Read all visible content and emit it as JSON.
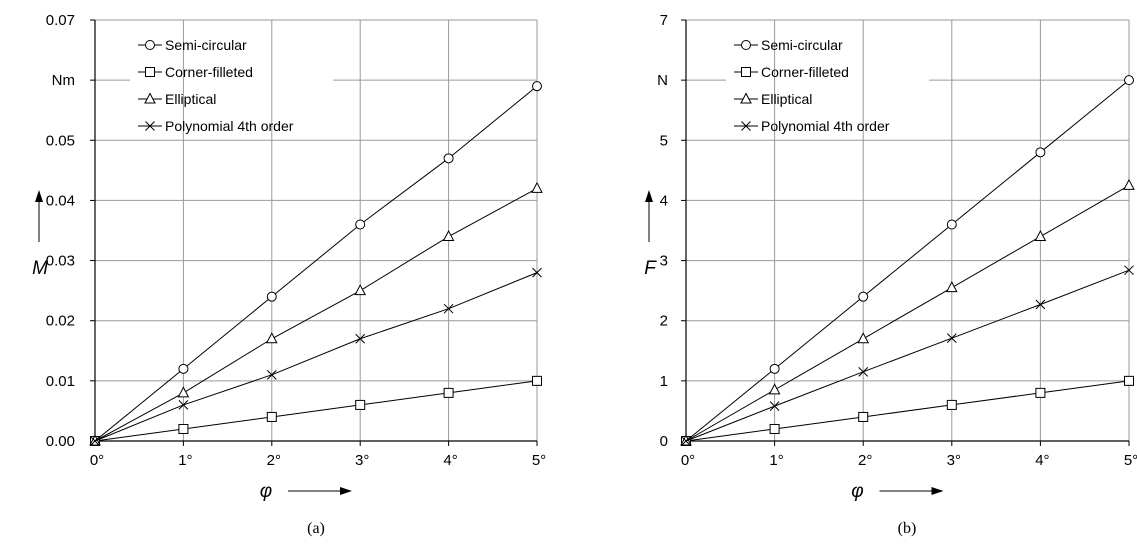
{
  "chart_data": [
    {
      "type": "line",
      "caption": "(a)",
      "ylabel": "M",
      "y_unit": "Nm",
      "xlabel": "φ",
      "x": [
        0,
        1,
        2,
        3,
        4,
        5
      ],
      "x_tick_labels": [
        "0°",
        "1°",
        "2°",
        "3°",
        "4°",
        "5°"
      ],
      "ylim": [
        0,
        0.07
      ],
      "y_ticks": [
        0,
        0.01,
        0.02,
        0.03,
        0.04,
        0.05,
        0.06,
        0.07
      ],
      "y_tick_labels": [
        "0.00",
        "0.01",
        "0.02",
        "0.03",
        "0.04",
        "0.05",
        "Nm",
        "0.07"
      ],
      "grid": true,
      "legend_position": "top-left",
      "series": [
        {
          "name": "Semi-circular",
          "marker": "circle",
          "values": [
            0,
            0.012,
            0.024,
            0.036,
            0.047,
            0.059
          ]
        },
        {
          "name": "Corner-filleted",
          "marker": "square",
          "values": [
            0,
            0.002,
            0.004,
            0.006,
            0.008,
            0.01
          ]
        },
        {
          "name": "Elliptical",
          "marker": "triangle",
          "values": [
            0,
            0.008,
            0.017,
            0.025,
            0.034,
            0.042
          ]
        },
        {
          "name": "Polynomial 4th order",
          "marker": "cross",
          "values": [
            0,
            0.006,
            0.011,
            0.017,
            0.022,
            0.028
          ]
        }
      ]
    },
    {
      "type": "line",
      "caption": "(b)",
      "ylabel": "F",
      "y_unit": "N",
      "xlabel": "φ",
      "x": [
        0,
        1,
        2,
        3,
        4,
        5
      ],
      "x_tick_labels": [
        "0°",
        "1°",
        "2°",
        "3°",
        "4°",
        "5°"
      ],
      "ylim": [
        0,
        7
      ],
      "y_ticks": [
        0,
        1,
        2,
        3,
        4,
        5,
        6,
        7
      ],
      "y_tick_labels": [
        "0",
        "1",
        "2",
        "3",
        "4",
        "5",
        "N",
        "7"
      ],
      "grid": true,
      "legend_position": "top-left",
      "series": [
        {
          "name": "Semi-circular",
          "marker": "circle",
          "values": [
            0,
            1.2,
            2.4,
            3.6,
            4.8,
            6.0
          ]
        },
        {
          "name": "Corner-filleted",
          "marker": "square",
          "values": [
            0,
            0.2,
            0.4,
            0.6,
            0.8,
            1.0
          ]
        },
        {
          "name": "Elliptical",
          "marker": "triangle",
          "values": [
            0,
            0.85,
            1.7,
            2.55,
            3.4,
            4.25
          ]
        },
        {
          "name": "Polynomial 4th order",
          "marker": "cross",
          "values": [
            0,
            0.58,
            1.15,
            1.71,
            2.27,
            2.84
          ]
        }
      ]
    }
  ]
}
